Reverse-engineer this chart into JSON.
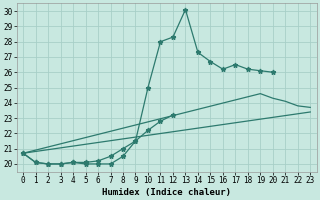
{
  "xlabel": "Humidex (Indice chaleur)",
  "line_color": "#2d7a6e",
  "bg_color": "#c8e8e0",
  "grid_color": "#a8cfc8",
  "ylim": [
    19.5,
    30.5
  ],
  "xlim": [
    -0.5,
    23.5
  ],
  "yticks": [
    20,
    21,
    22,
    23,
    24,
    25,
    26,
    27,
    28,
    29,
    30
  ],
  "xticks": [
    0,
    1,
    2,
    3,
    4,
    5,
    6,
    7,
    8,
    9,
    10,
    11,
    12,
    13,
    14,
    15,
    16,
    17,
    18,
    19,
    20,
    21,
    22,
    23
  ],
  "line1_x": [
    0,
    1,
    2,
    3,
    4,
    5,
    6,
    7,
    8,
    9,
    10,
    11,
    12,
    13,
    14,
    15,
    16,
    17,
    18,
    19,
    20
  ],
  "line1_y": [
    20.7,
    20.1,
    20.0,
    20.0,
    20.1,
    20.0,
    20.0,
    20.0,
    20.5,
    21.5,
    25.0,
    28.0,
    28.3,
    30.1,
    27.3,
    26.7,
    26.2,
    26.5,
    26.2,
    26.1,
    26.0
  ],
  "line2_x": [
    0,
    1,
    2,
    3,
    4,
    5,
    6,
    7,
    8,
    9,
    10,
    11,
    12
  ],
  "line2_y": [
    20.7,
    20.1,
    20.0,
    20.0,
    20.1,
    20.1,
    20.2,
    20.5,
    21.0,
    21.5,
    22.2,
    22.8,
    23.2
  ],
  "line3_x": [
    0,
    23
  ],
  "line3_y": [
    20.7,
    23.4
  ],
  "line4_x": [
    0,
    19,
    20,
    21,
    22,
    23
  ],
  "line4_y": [
    20.7,
    24.6,
    24.3,
    24.1,
    23.8,
    23.7
  ]
}
